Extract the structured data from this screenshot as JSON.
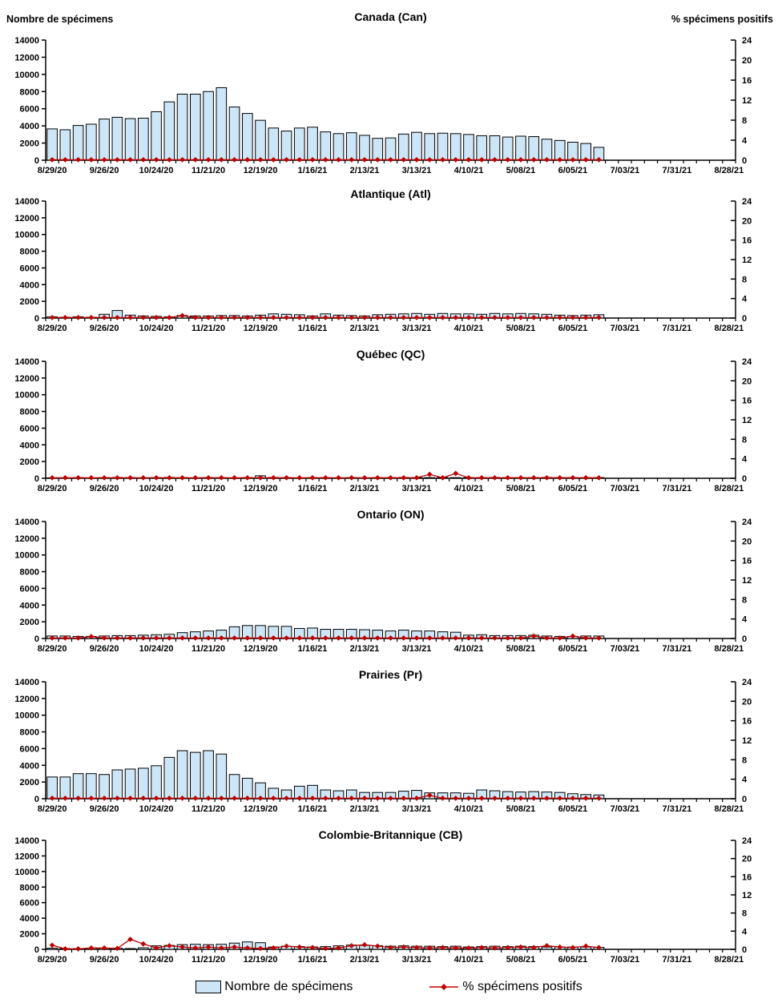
{
  "legend": {
    "bars_label": "Nombre de spécimens",
    "line_label": "% spécimens positifs"
  },
  "axes": {
    "left_title": "Nombre de spécimens",
    "right_title": "% spécimens positifs",
    "left_ticks": [
      0,
      2000,
      4000,
      6000,
      8000,
      10000,
      12000,
      14000
    ],
    "left_max": 14000,
    "right_ticks": [
      0,
      4,
      8,
      12,
      16,
      20,
      24
    ],
    "right_max": 24,
    "total_week_slots": 53,
    "x_tick_labels": [
      "8/29/20",
      "9/26/20",
      "10/24/20",
      "11/21/20",
      "12/19/20",
      "1/16/21",
      "2/13/21",
      "3/13/21",
      "4/10/21",
      "5/08/21",
      "6/05/21",
      "7/03/21",
      "7/31/21",
      "8/28/21"
    ],
    "x_label_week_positions": [
      0,
      4,
      8,
      12,
      16,
      20,
      24,
      28,
      32,
      36,
      40,
      44,
      48,
      52
    ]
  },
  "colors": {
    "bar_fill": "#CDE6F7",
    "bar_stroke": "#000000",
    "line": "#C00000",
    "marker": "#C00000",
    "axis": "#000000",
    "text": "#000000"
  },
  "categories": [
    "8/29/20",
    "9/5/20",
    "9/12/20",
    "9/19/20",
    "9/26/20",
    "10/3/20",
    "10/10/20",
    "10/17/20",
    "10/24/20",
    "10/31/20",
    "11/7/20",
    "11/14/20",
    "11/21/20",
    "11/28/20",
    "12/5/20",
    "12/12/20",
    "12/19/20",
    "12/26/20",
    "1/2/21",
    "1/9/21",
    "1/16/21",
    "1/23/21",
    "1/30/21",
    "2/6/21",
    "2/13/21",
    "2/20/21",
    "2/27/21",
    "3/6/21",
    "3/13/21",
    "3/20/21",
    "3/27/21",
    "4/3/21",
    "4/10/21",
    "4/17/21",
    "4/24/21",
    "5/1/21",
    "5/8/21",
    "5/15/21",
    "5/22/21",
    "5/29/21",
    "6/5/21",
    "6/12/21",
    "6/19/21"
  ],
  "chart_data": [
    {
      "type": "bar+line",
      "title": "Canada (Can)",
      "series": [
        {
          "name": "Nombre de spécimens",
          "axis": "left",
          "values": [
            3650,
            3550,
            4050,
            4200,
            4800,
            5000,
            4850,
            4900,
            5650,
            6800,
            7700,
            7700,
            8000,
            8450,
            6200,
            5450,
            4650,
            3750,
            3400,
            3750,
            3850,
            3300,
            3100,
            3200,
            2900,
            2550,
            2600,
            3050,
            3250,
            3100,
            3150,
            3100,
            3000,
            2850,
            2850,
            2700,
            2800,
            2750,
            2450,
            2300,
            2100,
            1950,
            1500
          ]
        },
        {
          "name": "% spécimens positifs",
          "axis": "right",
          "values": [
            0.1,
            0.1,
            0.1,
            0.1,
            0.1,
            0.1,
            0.1,
            0.1,
            0.1,
            0.1,
            0.1,
            0.1,
            0.1,
            0.1,
            0.1,
            0.1,
            0.1,
            0.1,
            0.1,
            0.1,
            0.1,
            0.1,
            0.1,
            0.1,
            0.1,
            0.1,
            0.1,
            0.1,
            0.1,
            0.1,
            0.1,
            0.1,
            0.1,
            0.1,
            0.1,
            0.1,
            0.1,
            0.1,
            0.1,
            0.1,
            0.1,
            0.1,
            0.1
          ]
        }
      ]
    },
    {
      "type": "bar+line",
      "title": "Atlantique (Atl)",
      "series": [
        {
          "name": "Nombre de spécimens",
          "axis": "left",
          "values": [
            150,
            100,
            150,
            100,
            450,
            900,
            350,
            250,
            200,
            150,
            300,
            250,
            250,
            300,
            300,
            250,
            350,
            500,
            450,
            400,
            250,
            500,
            350,
            300,
            250,
            400,
            450,
            500,
            550,
            450,
            550,
            500,
            500,
            450,
            550,
            500,
            550,
            500,
            450,
            350,
            300,
            350,
            400
          ]
        },
        {
          "name": "% spécimens positifs",
          "axis": "right",
          "values": [
            0.1,
            0.1,
            0.1,
            0.1,
            0.1,
            0.1,
            0.1,
            0.1,
            0.1,
            0.1,
            0.5,
            0.1,
            0.1,
            0.1,
            0.1,
            0.1,
            0.1,
            0.1,
            0.1,
            0.1,
            0.1,
            0.1,
            0.1,
            0.1,
            0.1,
            0.1,
            0.1,
            0.1,
            0.1,
            0.1,
            0.1,
            0.1,
            0.1,
            0.1,
            0.1,
            0.1,
            0.1,
            0.1,
            0.1,
            0.1,
            0.1,
            0.1,
            0.1
          ]
        }
      ]
    },
    {
      "type": "bar+line",
      "title": "Québec (QC)",
      "series": [
        {
          "name": "Nombre de spécimens",
          "axis": "left",
          "values": [
            50,
            60,
            80,
            50,
            80,
            100,
            80,
            50,
            80,
            100,
            80,
            50,
            80,
            80,
            50,
            80,
            300,
            100,
            80,
            50,
            80,
            80,
            50,
            80,
            50,
            80,
            80,
            100,
            80,
            80,
            100,
            80,
            80,
            80,
            100,
            80,
            80,
            80,
            100,
            80,
            80,
            80,
            80
          ]
        },
        {
          "name": "% spécimens positifs",
          "axis": "right",
          "values": [
            0.1,
            0.1,
            0.1,
            0.1,
            0.1,
            0.1,
            0.1,
            0.1,
            0.1,
            0.1,
            0.1,
            0.1,
            0.1,
            0.1,
            0.1,
            0.1,
            0.1,
            0.1,
            0.1,
            0.1,
            0.1,
            0.1,
            0.1,
            0.1,
            0.1,
            0.1,
            0.1,
            0.1,
            0.1,
            0.8,
            0.1,
            1.0,
            0.1,
            0.1,
            0.1,
            0.1,
            0.1,
            0.1,
            0.1,
            0.1,
            0.1,
            0.1,
            0.1
          ]
        }
      ]
    },
    {
      "type": "bar+line",
      "title": "Ontario (ON)",
      "series": [
        {
          "name": "Nombre de spécimens",
          "axis": "left",
          "values": [
            300,
            300,
            250,
            250,
            300,
            350,
            350,
            400,
            450,
            500,
            700,
            800,
            900,
            1000,
            1400,
            1550,
            1550,
            1450,
            1450,
            1200,
            1250,
            1100,
            1100,
            1100,
            1050,
            1000,
            900,
            1000,
            900,
            900,
            800,
            750,
            400,
            450,
            350,
            350,
            350,
            400,
            300,
            250,
            250,
            300,
            300
          ]
        },
        {
          "name": "% spécimens positifs",
          "axis": "right",
          "values": [
            0.1,
            0.1,
            0.1,
            0.4,
            0.1,
            0.1,
            0.1,
            0.1,
            0.1,
            0.1,
            0.1,
            0.1,
            0.1,
            0.1,
            0.1,
            0.1,
            0.1,
            0.1,
            0.1,
            0.1,
            0.1,
            0.1,
            0.1,
            0.1,
            0.1,
            0.1,
            0.1,
            0.1,
            0.1,
            0.1,
            0.1,
            0.1,
            0.1,
            0.1,
            0.1,
            0.1,
            0.1,
            0.5,
            0.1,
            0.1,
            0.5,
            0.1,
            0.1
          ]
        }
      ]
    },
    {
      "type": "bar+line",
      "title": "Prairies (Pr)",
      "series": [
        {
          "name": "Nombre de spécimens",
          "axis": "left",
          "values": [
            2600,
            2600,
            3000,
            3000,
            2900,
            3450,
            3550,
            3650,
            3950,
            4950,
            5750,
            5550,
            5750,
            5350,
            2900,
            2450,
            1900,
            1250,
            1050,
            1500,
            1600,
            1050,
            950,
            1050,
            750,
            750,
            750,
            900,
            1000,
            700,
            700,
            700,
            650,
            1050,
            950,
            850,
            800,
            850,
            800,
            750,
            600,
            500,
            450
          ]
        },
        {
          "name": "% spécimens positifs",
          "axis": "right",
          "values": [
            0.1,
            0.1,
            0.1,
            0.1,
            0.1,
            0.1,
            0.1,
            0.1,
            0.1,
            0.1,
            0.1,
            0.1,
            0.1,
            0.1,
            0.1,
            0.1,
            0.1,
            0.1,
            0.1,
            0.1,
            0.1,
            0.1,
            0.1,
            0.1,
            0.1,
            0.1,
            0.1,
            0.1,
            0.1,
            0.7,
            0.1,
            0.1,
            0.1,
            0.1,
            0.1,
            0.1,
            0.1,
            0.1,
            0.1,
            0.1,
            0.1,
            0.1,
            0.1
          ]
        }
      ]
    },
    {
      "type": "bar+line",
      "title": "Colombie-Britannique (CB)",
      "series": [
        {
          "name": "Nombre de spécimens",
          "axis": "left",
          "values": [
            150,
            100,
            100,
            150,
            150,
            150,
            100,
            200,
            450,
            500,
            600,
            650,
            600,
            650,
            800,
            950,
            850,
            300,
            400,
            350,
            300,
            350,
            450,
            550,
            500,
            450,
            400,
            450,
            400,
            400,
            350,
            400,
            300,
            350,
            400,
            350,
            400,
            350,
            300,
            300,
            300,
            300,
            250
          ]
        },
        {
          "name": "% spécimens positifs",
          "axis": "right",
          "values": [
            0.9,
            0.1,
            0.1,
            0.3,
            0.3,
            0.2,
            2.2,
            1.2,
            0.3,
            0.8,
            0.5,
            0.3,
            0.5,
            0.3,
            0.5,
            0.3,
            0.2,
            0.3,
            0.7,
            0.5,
            0.4,
            0.2,
            0.3,
            0.8,
            1.0,
            0.7,
            0.4,
            0.5,
            0.4,
            0.3,
            0.4,
            0.3,
            0.3,
            0.4,
            0.3,
            0.4,
            0.5,
            0.4,
            0.8,
            0.5,
            0.4,
            0.7,
            0.4
          ]
        }
      ]
    }
  ]
}
